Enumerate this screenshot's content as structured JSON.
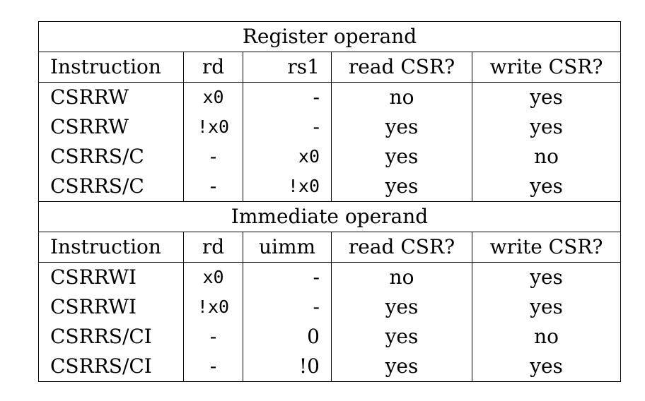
{
  "register": {
    "title": "Register operand",
    "headers": [
      "Instruction",
      "rd",
      "rs1",
      "read CSR?",
      "write CSR?"
    ],
    "rows": [
      {
        "instruction": "CSRRW",
        "rd": "x0",
        "src": "-",
        "read": "no",
        "write": "yes"
      },
      {
        "instruction": "CSRRW",
        "rd": "!x0",
        "src": "-",
        "read": "yes",
        "write": "yes"
      },
      {
        "instruction": "CSRRS/C",
        "rd": "-",
        "src": "x0",
        "read": "yes",
        "write": "no"
      },
      {
        "instruction": "CSRRS/C",
        "rd": "-",
        "src": "!x0",
        "read": "yes",
        "write": "yes"
      }
    ]
  },
  "immediate": {
    "title": "Immediate operand",
    "headers": [
      "Instruction",
      "rd",
      "uimm",
      "read CSR?",
      "write CSR?"
    ],
    "rows": [
      {
        "instruction": "CSRRWI",
        "rd": "x0",
        "src": "-",
        "read": "no",
        "write": "yes"
      },
      {
        "instruction": "CSRRWI",
        "rd": "!x0",
        "src": "-",
        "read": "yes",
        "write": "yes"
      },
      {
        "instruction": "CSRRS/CI",
        "rd": "-",
        "src": "0",
        "read": "yes",
        "write": "no"
      },
      {
        "instruction": "CSRRS/CI",
        "rd": "-",
        "src": "!0",
        "read": "yes",
        "write": "yes"
      }
    ]
  }
}
